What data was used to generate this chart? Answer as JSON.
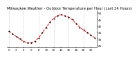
{
  "title": "Milwaukee Weather - Outdoor Temperature per Hour (Last 24 Hours)",
  "hours": [
    0,
    1,
    2,
    3,
    4,
    5,
    6,
    7,
    8,
    9,
    10,
    11,
    12,
    13,
    14,
    15,
    16,
    17,
    18,
    19,
    20,
    21,
    22,
    23
  ],
  "temps": [
    36,
    34,
    32,
    30,
    28,
    27,
    27,
    28,
    31,
    35,
    39,
    43,
    46,
    48,
    49,
    48,
    47,
    45,
    42,
    39,
    37,
    35,
    33,
    31
  ],
  "line_color": "#dd0000",
  "marker_color": "#000000",
  "bg_color": "#ffffff",
  "grid_color": "#aaaaaa",
  "ylim": [
    24,
    52
  ],
  "yticks": [
    25,
    30,
    35,
    40,
    45,
    50
  ],
  "xticks": [
    0,
    2,
    4,
    6,
    8,
    10,
    12,
    14,
    16,
    18,
    20,
    22
  ],
  "grid_x_positions": [
    0,
    4,
    8,
    12,
    16,
    20
  ],
  "title_fontsize": 3.8,
  "tick_fontsize": 3.0,
  "linewidth": 0.7,
  "markersize": 1.0
}
